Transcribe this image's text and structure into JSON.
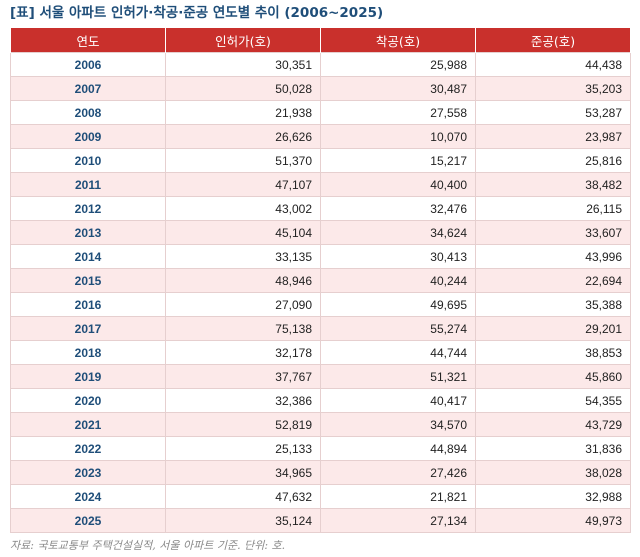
{
  "title": "[표] 서울 아파트 인허가·착공·준공 연도별 추이 (2006~2025)",
  "table": {
    "headers": [
      "연도",
      "인허가(호)",
      "착공(호)",
      "준공(호)"
    ],
    "rows": [
      [
        "2006",
        "30,351",
        "25,988",
        "44,438"
      ],
      [
        "2007",
        "50,028",
        "30,487",
        "35,203"
      ],
      [
        "2008",
        "21,938",
        "27,558",
        "53,287"
      ],
      [
        "2009",
        "26,626",
        "10,070",
        "23,987"
      ],
      [
        "2010",
        "51,370",
        "15,217",
        "25,816"
      ],
      [
        "2011",
        "47,107",
        "40,400",
        "38,482"
      ],
      [
        "2012",
        "43,002",
        "32,476",
        "26,115"
      ],
      [
        "2013",
        "45,104",
        "34,624",
        "33,607"
      ],
      [
        "2014",
        "33,135",
        "30,413",
        "43,996"
      ],
      [
        "2015",
        "48,946",
        "40,244",
        "22,694"
      ],
      [
        "2016",
        "27,090",
        "49,695",
        "35,388"
      ],
      [
        "2017",
        "75,138",
        "55,274",
        "29,201"
      ],
      [
        "2018",
        "32,178",
        "44,744",
        "38,853"
      ],
      [
        "2019",
        "37,767",
        "51,321",
        "45,860"
      ],
      [
        "2020",
        "32,386",
        "40,417",
        "54,355"
      ],
      [
        "2021",
        "52,819",
        "34,570",
        "43,729"
      ],
      [
        "2022",
        "25,133",
        "44,894",
        "31,836"
      ],
      [
        "2023",
        "34,965",
        "27,426",
        "38,028"
      ],
      [
        "2024",
        "47,632",
        "21,821",
        "32,988"
      ],
      [
        "2025",
        "35,124",
        "27,134",
        "49,973"
      ]
    ]
  },
  "source": "자료: 국토교통부 주택건설실적, 서울 아파트 기준. 단위: 호.",
  "colors": {
    "header_bg": "#c9302c",
    "title": "#1f4e79",
    "stripe": "#fce9e9"
  }
}
